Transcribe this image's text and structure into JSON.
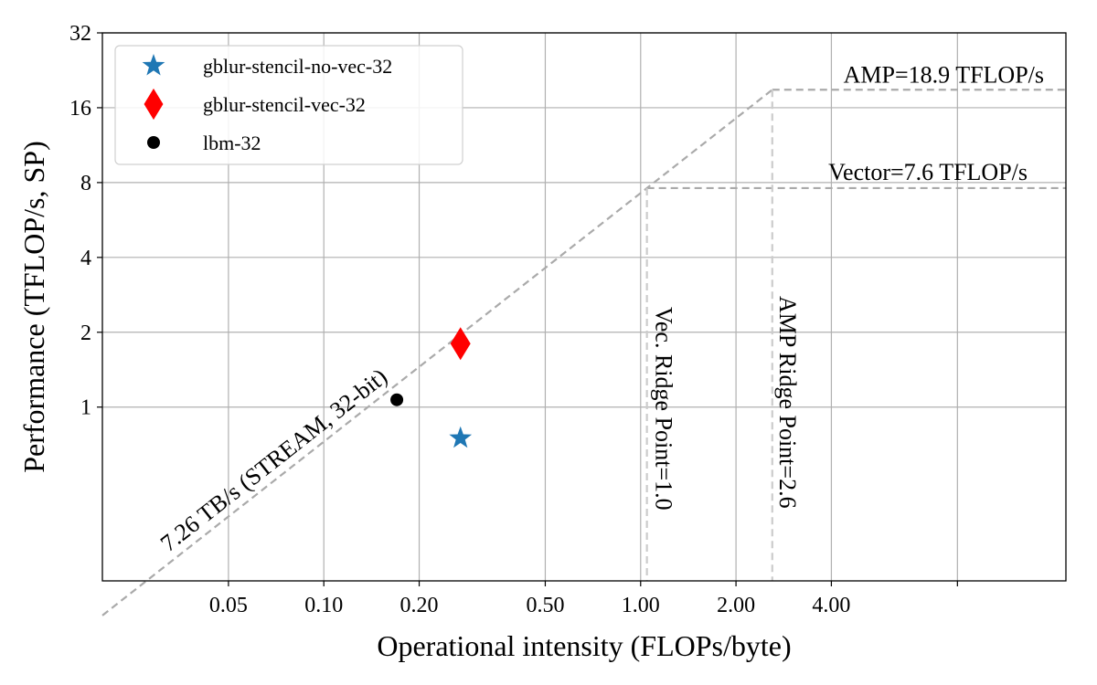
{
  "chart_data": {
    "type": "scatter",
    "title": "",
    "xlabel": "Operational intensity (FLOPs/byte)",
    "ylabel": "Performance (TFLOP/s, SP)",
    "xscale": "log",
    "yscale": "log2",
    "xlim": [
      0.02,
      22
    ],
    "ylim": [
      0.2,
      32
    ],
    "xticks": [
      {
        "value": 0.05,
        "label": "0.05"
      },
      {
        "value": 0.1,
        "label": "0.10"
      },
      {
        "value": 0.2,
        "label": "0.20"
      },
      {
        "value": 0.5,
        "label": "0.50"
      },
      {
        "value": 1.0,
        "label": "1.00"
      },
      {
        "value": 2.0,
        "label": "2.00"
      },
      {
        "value": 4.0,
        "label": "4.00"
      },
      {
        "value": 10.0,
        "label": ""
      }
    ],
    "yticks": [
      {
        "value": 1,
        "label": "1"
      },
      {
        "value": 2,
        "label": "2"
      },
      {
        "value": 4,
        "label": "4"
      },
      {
        "value": 8,
        "label": "8"
      },
      {
        "value": 16,
        "label": "16"
      },
      {
        "value": 32,
        "label": "32"
      }
    ],
    "grid": true,
    "legend_position": "top-left",
    "series": [
      {
        "name": "gblur-stencil-no-vec-32",
        "marker": "star",
        "color": "#1f77b4",
        "points": [
          {
            "x": 0.27,
            "y": 0.75
          }
        ]
      },
      {
        "name": "gblur-stencil-vec-32",
        "marker": "diamond",
        "color": "#ff0000",
        "points": [
          {
            "x": 0.27,
            "y": 1.8
          }
        ]
      },
      {
        "name": "lbm-32",
        "marker": "circle",
        "color": "#000000",
        "points": [
          {
            "x": 0.17,
            "y": 1.07
          }
        ]
      }
    ],
    "rooflines": {
      "bandwidth_TBps": 7.26,
      "vector_peak": 7.6,
      "amp_peak": 18.9,
      "vec_ridge_point": 1.0,
      "amp_ridge_point": 2.6,
      "line_color": "#aaaaaa",
      "ridge_color": "#cccccc"
    },
    "annotations": {
      "bandwidth_label": "7.26 TB/s (STREAM, 32-bit)",
      "amp_label": "AMP=18.9 TFLOP/s",
      "vector_label": "Vector=7.6 TFLOP/s",
      "vec_ridge_label": "Vec. Ridge Point=1.0",
      "amp_ridge_label": "AMP Ridge Point=2.6"
    }
  }
}
